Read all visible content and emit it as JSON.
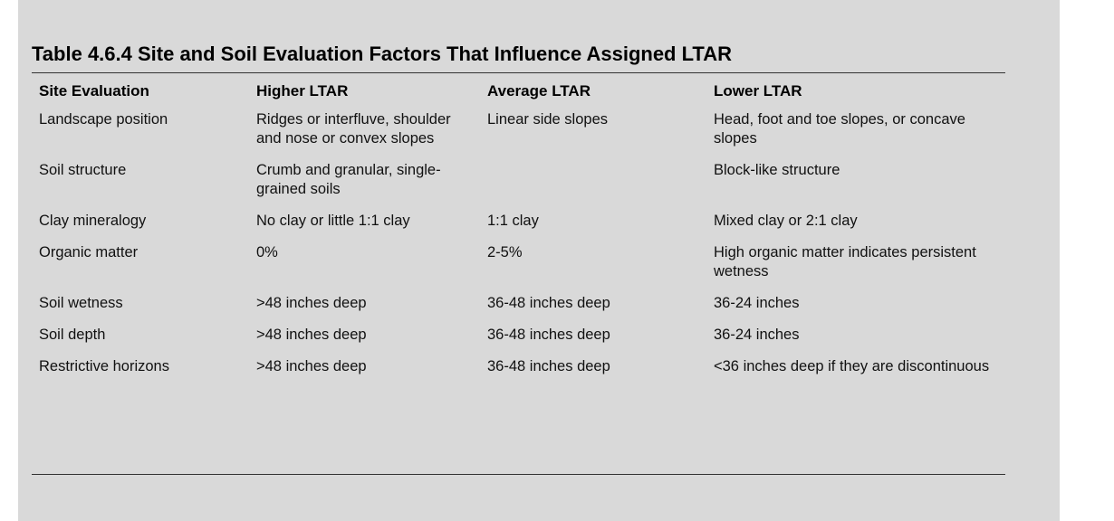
{
  "table": {
    "caption": "Table 4.6.4 Site and Soil Evaluation Factors That Influence Assigned LTAR",
    "headers": [
      "Site Evaluation",
      "Higher LTAR",
      "Average LTAR",
      "Lower LTAR"
    ],
    "rows": [
      [
        "Landscape position",
        "Ridges or interfluve, shoulder and nose or convex slopes",
        "Linear side slopes",
        "Head, foot and toe slopes, or concave slopes"
      ],
      [
        "Soil structure",
        "Crumb and granular, single-grained soils",
        "",
        "Block-like structure"
      ],
      [
        "Clay mineralogy",
        "No clay or little 1:1 clay",
        "1:1 clay",
        "Mixed clay or 2:1 clay"
      ],
      [
        "Organic matter",
        "0%",
        "2-5%",
        "High organic matter indicates persistent wetness"
      ],
      [
        "Soil wetness",
        ">48 inches deep",
        "36-48 inches deep",
        "36-24 inches"
      ],
      [
        "Soil depth",
        ">48 inches deep",
        "36-48 inches deep",
        "36-24 inches"
      ],
      [
        "Restrictive horizons",
        ">48 inches deep",
        "36-48 inches deep",
        "<36 inches deep if they are discontinuous"
      ]
    ]
  }
}
